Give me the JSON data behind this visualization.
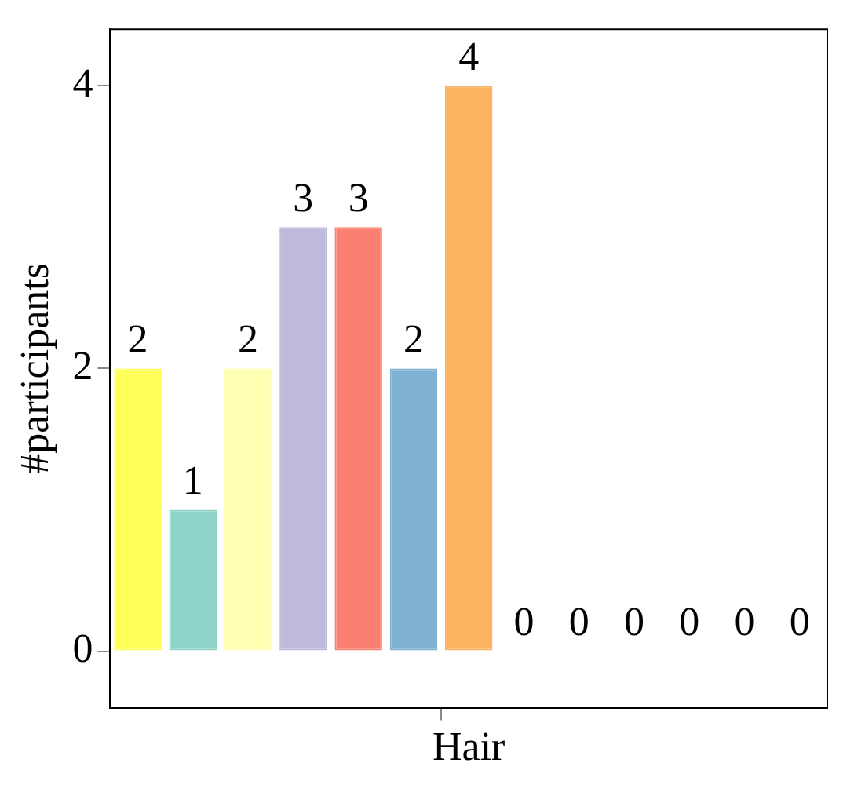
{
  "chart_data": {
    "type": "bar",
    "ylabel": "#participants",
    "categories": [
      null,
      null,
      null,
      null,
      null,
      null,
      "Hair",
      null,
      null,
      null,
      null,
      null,
      null
    ],
    "ylim": [
      -0.4,
      4.4
    ],
    "yticks": [
      0,
      2,
      4
    ],
    "grid": false,
    "legend": false,
    "data_labels": true,
    "values": [
      2,
      1,
      2,
      3,
      3,
      2,
      4,
      0,
      0,
      0,
      0,
      0,
      0
    ],
    "colors": [
      "#ffff5a",
      "#8dd3c7",
      "#ffffb3",
      "#bebada",
      "#fb8072",
      "#80b1d3",
      "#fdb462",
      "#b3de69",
      "#fccde5",
      "#d9d9d9",
      "#bc80bd",
      "#ccebc5",
      "#ffed6f"
    ]
  }
}
